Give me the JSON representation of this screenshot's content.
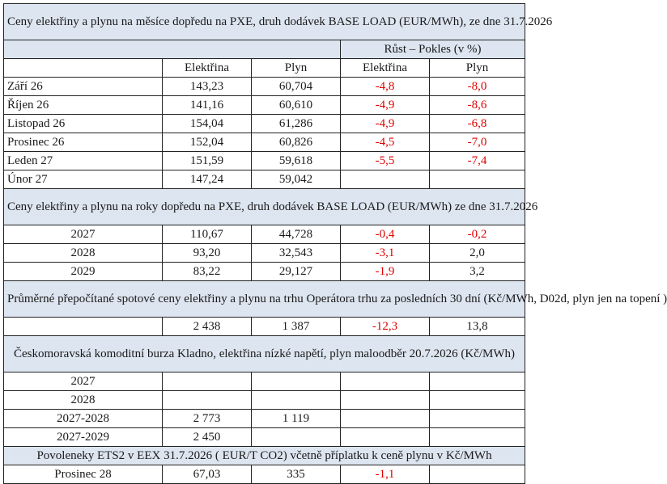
{
  "monthly": {
    "title": "Ceny elektřiny a plynu na měsíce dopředu na PXE, druh dodávek BASE LOAD (EUR/MWh), ze dne 31.7.2026",
    "growth_header": "Růst – Pokles (v %)",
    "col_elec": "Elektřina",
    "col_gas": "Plyn",
    "rows": [
      {
        "label": "Září 26",
        "elec": "143,23",
        "gas": "60,704",
        "elec_chg": "-4,8",
        "gas_chg": "-8,0"
      },
      {
        "label": "Říjen 26",
        "elec": "141,16",
        "gas": "60,610",
        "elec_chg": "-4,9",
        "gas_chg": "-8,6"
      },
      {
        "label": "Listopad 26",
        "elec": "154,04",
        "gas": "61,286",
        "elec_chg": "-4,9",
        "gas_chg": "-6,8"
      },
      {
        "label": "Prosinec 26",
        "elec": "152,04",
        "gas": "60,826",
        "elec_chg": "-4,5",
        "gas_chg": "-7,0"
      },
      {
        "label": "Leden 27",
        "elec": "151,59",
        "gas": "59,618",
        "elec_chg": "-5,5",
        "gas_chg": "-7,4"
      },
      {
        "label": "Únor 27",
        "elec": "147,24",
        "gas": "59,042",
        "elec_chg": "",
        "gas_chg": ""
      }
    ]
  },
  "yearly": {
    "title": "Ceny elektřiny a plynu na roky dopředu na PXE, druh dodávek BASE LOAD (EUR/MWh) ze dne 31.7.2026",
    "rows": [
      {
        "label": "2027",
        "elec": "110,67",
        "gas": "44,728",
        "elec_chg": "-0,4",
        "gas_chg": "-0,2"
      },
      {
        "label": "2028",
        "elec": "93,20",
        "gas": "32,543",
        "elec_chg": "-3,1",
        "gas_chg": "2,0"
      },
      {
        "label": "2029",
        "elec": "83,22",
        "gas": "29,127",
        "elec_chg": "-1,9",
        "gas_chg": "3,2"
      }
    ]
  },
  "spot": {
    "title": "Průměrné přepočítané spotové ceny elektřiny a plynu na trhu Operátora trhu za posledních 30 dní (Kč/MWh, D02d, plyn jen na topení )",
    "elec": "2 438",
    "gas": "1 387",
    "elec_chg": "-12,3",
    "gas_chg": "13,8"
  },
  "kladno": {
    "title": "Českomoravská komoditní burza Kladno, elektřina nízké napětí, plyn maloodběr 20.7.2026 (Kč/MWh)",
    "rows": [
      {
        "label": "2027",
        "elec": "",
        "gas": ""
      },
      {
        "label": "2028",
        "elec": "",
        "gas": ""
      },
      {
        "label": "2027-2028",
        "elec": "2 773",
        "gas": "1 119"
      },
      {
        "label": "2027-2029",
        "elec": "2 450",
        "gas": ""
      }
    ]
  },
  "ets": {
    "title": "Povoleneky ETS2 v EEX 31.7.2026  ( EUR/T CO2) včetně příplatku k ceně plynu v Kč/MWh",
    "label": "Prosinec 28",
    "elec": "67,03",
    "gas": "335",
    "elec_chg": "-1,1",
    "gas_chg": ""
  },
  "colors": {
    "header_bg": "#dde5f0",
    "negative": "#e00000",
    "border": "#222222"
  }
}
